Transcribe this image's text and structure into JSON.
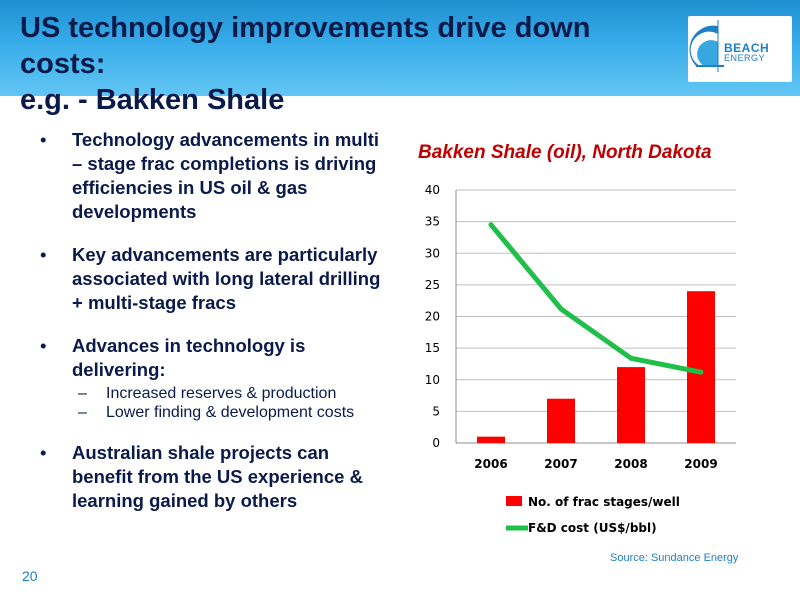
{
  "slide": {
    "title_line1": "US technology improvements drive down costs:",
    "title_line2": "e.g. - Bakken Shale",
    "logo_text": "BEACH",
    "logo_subtext": "ENERGY",
    "page_number": "20",
    "source": "Source:  Sundance Energy",
    "colors": {
      "header": "#38acea",
      "title_text": "#0a1a4a",
      "accent": "#1e7fc4"
    }
  },
  "bullets": [
    {
      "text": "Technology advancements in multi – stage frac completions is driving efficiencies in US oil & gas developments",
      "sub": []
    },
    {
      "text": "Key advancements are particularly associated with long lateral drilling + multi-stage fracs",
      "sub": []
    },
    {
      "text": "Advances in technology is delivering:",
      "sub": [
        "Increased reserves & production",
        "Lower finding & development costs"
      ]
    },
    {
      "text": "Australian shale projects can benefit from the US experience & learning gained by others",
      "sub": []
    }
  ],
  "chart_data": {
    "type": "bar",
    "title": "Bakken Shale (oil), North Dakota",
    "categories": [
      "2006",
      "2007",
      "2008",
      "2009"
    ],
    "series": [
      {
        "name": "No. of frac stages/well",
        "type": "bar",
        "color": "#ff0000",
        "values": [
          1,
          7,
          12,
          24
        ]
      },
      {
        "name": "F&D cost (US$/bbl)",
        "type": "line",
        "color": "#1fbf4a",
        "values": [
          34.5,
          21.2,
          13.4,
          11.2
        ]
      }
    ],
    "ylim": [
      0,
      40
    ],
    "yticks": [
      0,
      5,
      10,
      15,
      20,
      25,
      30,
      35,
      40
    ],
    "grid": true,
    "legend": "bottom"
  }
}
